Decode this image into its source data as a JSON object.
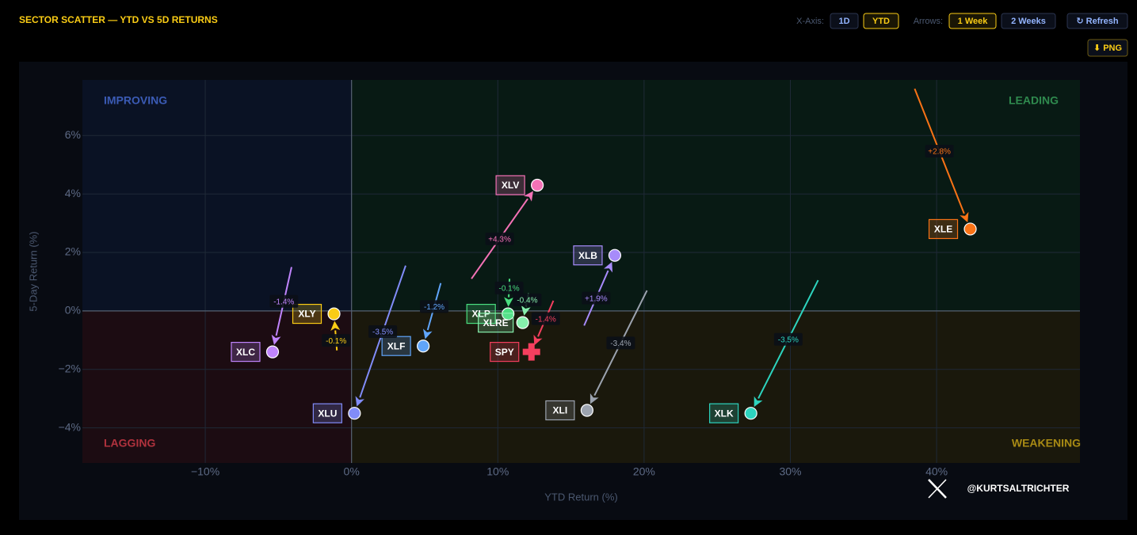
{
  "header": {
    "title": "SECTOR SCATTER — YTD VS 5D RETURNS"
  },
  "controls": {
    "x_axis_label": "X-Axis:",
    "x_axis_options": [
      "1D",
      "YTD"
    ],
    "arrows_label": "Arrows:",
    "arrows_options": [
      "1 Week",
      "2 Weeks"
    ],
    "refresh": "↻ Refresh",
    "export": "⬇ PNG"
  },
  "chart_data": {
    "type": "scatter",
    "xlabel": "YTD Return (%)",
    "ylabel": "5-Day Return (%)",
    "quadrants": {
      "top_left": "IMPROVING",
      "top_right": "LEADING",
      "bottom_left": "LAGGING",
      "bottom_right": "WEAKENING"
    },
    "categories": [
      "XLV",
      "XLE",
      "XLB",
      "XLP",
      "XLRE",
      "SPY",
      "XLI",
      "XLK",
      "XLF",
      "XLU",
      "XLY",
      "XLC"
    ],
    "x": [
      12.7,
      42.3,
      18.0,
      10.7,
      11.7,
      12.3,
      16.1,
      27.3,
      4.9,
      0.2,
      -1.2,
      -5.4
    ],
    "values": [
      4.3,
      2.8,
      1.9,
      -0.1,
      -0.4,
      -1.4,
      -3.4,
      -3.5,
      -1.2,
      -3.5,
      -0.1,
      -1.4
    ],
    "value_labels": [
      "+4.3%",
      "+2.8%",
      "+1.9%",
      "-0.1%",
      "-0.4%",
      "-1.4%",
      "-3.4%",
      "-3.5%",
      "-1.2%",
      "-3.5%",
      "-0.1%",
      "-1.4%"
    ],
    "x_start": [
      8.2,
      38.5,
      15.9,
      10.8,
      12.1,
      13.8,
      20.2,
      31.9,
      6.1,
      3.7,
      -1.0,
      -4.1
    ],
    "y_start": [
      1.1,
      7.6,
      -0.5,
      1.1,
      0.6,
      0.35,
      0.7,
      1.05,
      0.95,
      1.55,
      -1.35,
      1.5
    ],
    "colors": [
      "#f472b6",
      "#f97316",
      "#a78bfa",
      "#4ade80",
      "#86efac",
      "#f43f5e",
      "#9ca3af",
      "#2dd4bf",
      "#60a5fa",
      "#818cf8",
      "#facc15",
      "#c084fc"
    ],
    "markers": [
      "circle",
      "circle",
      "circle",
      "circle",
      "circle",
      "cross",
      "circle",
      "circle",
      "circle",
      "circle",
      "circle",
      "circle"
    ],
    "xlim": [
      -18.4,
      49.8
    ],
    "xticks": [
      {
        "value": -10,
        "label": "−10%"
      },
      {
        "value": 0,
        "label": "0%"
      },
      {
        "value": 10,
        "label": "10%"
      },
      {
        "value": 20,
        "label": "20%"
      },
      {
        "value": 30,
        "label": "30%"
      },
      {
        "value": 40,
        "label": "40%"
      }
    ],
    "ylim": [
      -5.2,
      7.9
    ],
    "yticks": [
      {
        "value": -4,
        "label": "−4%"
      },
      {
        "value": -2,
        "label": "−2%"
      },
      {
        "value": 0,
        "label": "0%"
      },
      {
        "value": 2,
        "label": "2%"
      },
      {
        "value": 4,
        "label": "4%"
      },
      {
        "value": 6,
        "label": "6%"
      }
    ],
    "grid": true
  },
  "footer": {
    "handle": "@KURTSALTRICHTER"
  }
}
